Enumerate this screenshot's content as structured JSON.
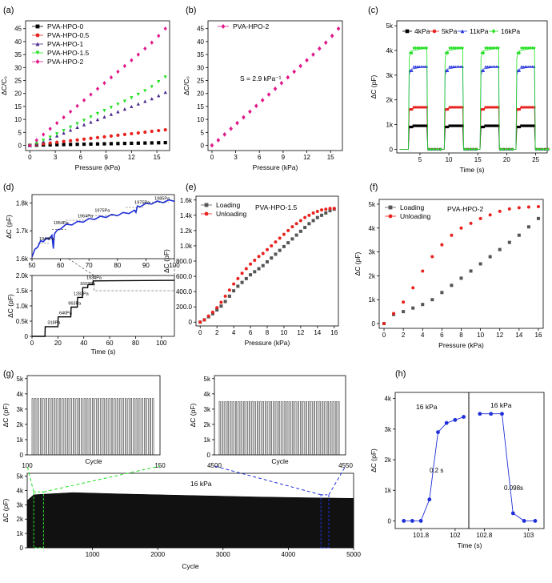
{
  "figure": {
    "panels": [
      {
        "id": "a",
        "label": "(a)"
      },
      {
        "id": "b",
        "label": "(b)"
      },
      {
        "id": "c",
        "label": "(c)"
      },
      {
        "id": "d",
        "label": "(d)"
      },
      {
        "id": "e",
        "label": "(e)"
      },
      {
        "id": "f",
        "label": "(f)"
      },
      {
        "id": "g",
        "label": "(g)"
      },
      {
        "id": "h",
        "label": "(h)"
      }
    ]
  },
  "chart_data": [
    {
      "id": "a",
      "type": "scatter",
      "xlabel": "Pressure (kPa)",
      "ylabel": "ΔC/C₀",
      "xlim": [
        -0.5,
        16.5
      ],
      "ylim": [
        -2,
        48
      ],
      "xticks": [
        0,
        3,
        6,
        9,
        12,
        15
      ],
      "yticks": [
        0,
        5,
        10,
        15,
        20,
        25,
        30,
        35,
        40,
        45
      ],
      "legend_position": "top-left",
      "x": [
        0,
        0.8,
        1.6,
        2.4,
        3.2,
        4,
        4.8,
        5.6,
        6.4,
        7.2,
        8,
        8.8,
        9.6,
        10.4,
        11.2,
        12,
        12.8,
        13.6,
        14.4,
        15.2,
        16
      ],
      "series": [
        {
          "name": "PVA-HPO-0",
          "color": "#000000",
          "marker": "square",
          "values": [
            0,
            0.1,
            0.15,
            0.2,
            0.25,
            0.3,
            0.35,
            0.4,
            0.45,
            0.5,
            0.55,
            0.6,
            0.65,
            0.7,
            0.75,
            0.8,
            0.85,
            0.9,
            0.95,
            1.0,
            1.05
          ]
        },
        {
          "name": "PVA-HPO-0.5",
          "color": "#e8231f",
          "marker": "circle",
          "values": [
            0,
            0.3,
            0.6,
            0.9,
            1.2,
            1.5,
            1.8,
            2.1,
            2.4,
            2.7,
            3.0,
            3.3,
            3.6,
            3.9,
            4.2,
            4.5,
            4.8,
            5.1,
            5.4,
            5.7,
            6.0
          ]
        },
        {
          "name": "PVA-HPO-1",
          "color": "#4b2a8c",
          "marker": "triangle-up",
          "values": [
            0,
            0.7,
            1.6,
            2.6,
            3.7,
            4.8,
            5.9,
            7.0,
            8.0,
            9.0,
            10.0,
            11.0,
            12.0,
            13.0,
            14.0,
            15.0,
            16.0,
            17.0,
            18.0,
            19.2,
            20.5
          ]
        },
        {
          "name": "PVA-HPO-1.5",
          "color": "#22e022",
          "marker": "triangle-down",
          "values": [
            0,
            0.8,
            1.9,
            3.1,
            4.4,
            5.7,
            7.0,
            8.3,
            9.6,
            10.9,
            12.2,
            13.4,
            14.6,
            15.8,
            17.0,
            18.3,
            19.6,
            21.0,
            22.6,
            24.5,
            26.3
          ]
        },
        {
          "name": "PVA-HPO-2",
          "color": "#e0198a",
          "marker": "diamond",
          "values": [
            0,
            2.0,
            4.2,
            6.4,
            8.6,
            10.8,
            13.0,
            15.2,
            17.4,
            19.6,
            21.8,
            24.0,
            26.2,
            28.4,
            30.6,
            32.8,
            35.0,
            37.3,
            39.6,
            42.2,
            45.0
          ]
        }
      ]
    },
    {
      "id": "b",
      "type": "scatter",
      "xlabel": "Pressure (kPa)",
      "ylabel": "ΔC/C₀",
      "xlim": [
        -0.5,
        16.5
      ],
      "ylim": [
        -2,
        48
      ],
      "xticks": [
        0,
        3,
        6,
        9,
        12,
        15
      ],
      "yticks": [
        0,
        5,
        10,
        15,
        20,
        25,
        30,
        35,
        40,
        45
      ],
      "legend_position": "top-left",
      "annotation": "S = 2.9 kPa⁻¹",
      "x": [
        0,
        0.8,
        1.6,
        2.4,
        3.2,
        4,
        4.8,
        5.6,
        6.4,
        7.2,
        8,
        8.8,
        9.6,
        10.4,
        11.2,
        12,
        12.8,
        13.6,
        14.4,
        15.2,
        16
      ],
      "series": [
        {
          "name": "PVA-HPO-2",
          "color": "#e0198a",
          "marker": "diamond",
          "values": [
            0,
            2.0,
            4.2,
            6.4,
            8.6,
            10.8,
            13.0,
            15.2,
            17.4,
            19.6,
            21.8,
            24.0,
            26.2,
            28.4,
            30.6,
            32.8,
            35.0,
            37.3,
            39.6,
            42.2,
            45.0
          ]
        }
      ]
    },
    {
      "id": "c",
      "type": "line",
      "xlabel": "Time (s)",
      "ylabel": "ΔC (pF)",
      "xlim": [
        1,
        27
      ],
      "ylim": [
        -150,
        5200
      ],
      "xticks": [
        5,
        10,
        15,
        20,
        25
      ],
      "yticks": [
        0,
        1000,
        2000,
        3000,
        4000,
        5000
      ],
      "ytick_labels": [
        "0",
        "1k",
        "2k",
        "3k",
        "4k",
        "5k"
      ],
      "legend_position": "top",
      "pulses": [
        [
          3,
          6.2
        ],
        [
          9.2,
          12.4
        ],
        [
          15.4,
          18.6
        ],
        [
          21.6,
          24.8
        ]
      ],
      "series": [
        {
          "name": "4kPa",
          "color": "#000000",
          "marker": "square",
          "level": 950
        },
        {
          "name": "5kPa",
          "color": "#e8231f",
          "marker": "circle",
          "level": 1700
        },
        {
          "name": "11kPa",
          "color": "#1f2fd9",
          "marker": "triangle-up",
          "level": 3350
        },
        {
          "name": "16kPa",
          "color": "#22e022",
          "marker": "diamond",
          "level": 4100
        }
      ]
    },
    {
      "id": "d-top",
      "type": "line",
      "xlabel": "",
      "ylabel": "ΔC (pF)",
      "xlim": [
        50,
        100
      ],
      "ylim": [
        1.6,
        1.83
      ],
      "xticks": [
        50,
        60,
        70,
        80,
        90,
        100
      ],
      "yticks": [
        1.6,
        1.7,
        1.8
      ],
      "ytick_labels": [
        "1.6k",
        "1.7k",
        "1.8k"
      ],
      "color": "#1f2fd9",
      "annotations": [
        "1944Pa",
        "1954Pa",
        "1964Pa",
        "1975Pa",
        "1975Pa",
        "1985Pa"
      ]
    },
    {
      "id": "d-bottom",
      "type": "line",
      "xlabel": "Time (s)",
      "ylabel": "ΔC (pF)",
      "xlim": [
        0,
        110
      ],
      "ylim": [
        0,
        2000
      ],
      "xticks": [
        0,
        20,
        40,
        60,
        80,
        100
      ],
      "yticks": [
        0,
        500,
        1000,
        1500,
        2000
      ],
      "ytick_labels": [
        "0",
        "0.5k",
        "1.0k",
        "1.5k",
        "2.0k"
      ],
      "color": "#000000",
      "x": [
        0,
        10,
        10.2,
        20,
        20.2,
        30,
        30.2,
        35,
        35.2,
        39,
        39.2,
        43,
        43.2,
        47,
        47.2,
        110
      ],
      "values": [
        0,
        0,
        318,
        318,
        640,
        640,
        960,
        960,
        1280,
        1280,
        1600,
        1600,
        1700,
        1700,
        1820,
        1840
      ],
      "annotations": [
        "318Pa",
        "640Pa",
        "963Pa",
        "1283Pa",
        "1603Pa",
        "1934Pa"
      ]
    },
    {
      "id": "e",
      "type": "scatter",
      "title": "PVA-HPO-1.5",
      "xlabel": "Pressure (kPa)",
      "ylabel": "ΔC (pF)",
      "xlim": [
        -0.5,
        16.5
      ],
      "ylim": [
        -50,
        1650
      ],
      "xticks": [
        0,
        2,
        4,
        6,
        8,
        10,
        12,
        14,
        16
      ],
      "yticks": [
        0,
        200,
        400,
        600,
        800,
        1000,
        1200,
        1400,
        1600
      ],
      "ytick_labels": [
        "0",
        "200.0",
        "400.0",
        "600.0",
        "800.0",
        "1.0k",
        "1.2k",
        "1.4k",
        "1.6k"
      ],
      "legend_position": "top-left",
      "series": [
        {
          "name": "Loading",
          "color": "#555555",
          "marker": "square",
          "x": [
            0,
            0.5,
            1,
            1.5,
            2,
            2.5,
            3,
            3.5,
            4,
            4.5,
            5,
            5.5,
            6,
            6.5,
            7,
            7.5,
            8,
            8.5,
            9,
            9.5,
            10,
            10.5,
            11,
            11.5,
            12,
            12.5,
            13,
            13.5,
            14,
            14.5,
            15,
            15.5,
            16
          ],
          "values": [
            0,
            30,
            70,
            110,
            160,
            210,
            270,
            340,
            410,
            470,
            520,
            570,
            620,
            660,
            700,
            740,
            790,
            840,
            890,
            940,
            990,
            1040,
            1090,
            1140,
            1190,
            1240,
            1290,
            1330,
            1370,
            1400,
            1430,
            1460,
            1480
          ]
        },
        {
          "name": "Unloading",
          "color": "#e8231f",
          "marker": "circle",
          "x": [
            0,
            0.5,
            1,
            1.5,
            2,
            2.5,
            3,
            3.5,
            4,
            4.5,
            5,
            5.5,
            6,
            6.5,
            7,
            7.5,
            8,
            8.5,
            9,
            9.5,
            10,
            10.5,
            11,
            11.5,
            12,
            12.5,
            13,
            13.5,
            14,
            14.5,
            15,
            15.5,
            16
          ],
          "values": [
            0,
            30,
            80,
            130,
            190,
            260,
            340,
            420,
            500,
            570,
            640,
            700,
            760,
            810,
            860,
            900,
            950,
            1000,
            1050,
            1100,
            1150,
            1200,
            1250,
            1290,
            1330,
            1370,
            1400,
            1430,
            1450,
            1470,
            1480,
            1490,
            1490
          ]
        }
      ]
    },
    {
      "id": "f",
      "type": "scatter",
      "title": "PVA-HPO-2",
      "xlabel": "Pressure (kPa)",
      "ylabel": "ΔC (pF)",
      "xlim": [
        -0.5,
        16.5
      ],
      "ylim": [
        -200,
        5200
      ],
      "xticks": [
        0,
        2,
        4,
        6,
        8,
        10,
        12,
        14,
        16
      ],
      "yticks": [
        0,
        1000,
        2000,
        3000,
        4000,
        5000
      ],
      "ytick_labels": [
        "0",
        "1k",
        "2k",
        "3k",
        "4k",
        "5k"
      ],
      "legend_position": "top-left",
      "series": [
        {
          "name": "Loading",
          "color": "#555555",
          "marker": "square",
          "x": [
            0,
            1,
            2,
            3,
            4,
            5,
            6,
            7,
            8,
            9,
            10,
            11,
            12,
            13,
            14,
            15,
            16
          ],
          "values": [
            0,
            380,
            500,
            650,
            800,
            1000,
            1300,
            1600,
            1900,
            2200,
            2500,
            2800,
            3100,
            3400,
            3700,
            4050,
            4400
          ]
        },
        {
          "name": "Unloading",
          "color": "#e8231f",
          "marker": "circle",
          "x": [
            0,
            1,
            2,
            3,
            4,
            5,
            6,
            7,
            8,
            9,
            10,
            11,
            12,
            13,
            14,
            15,
            16
          ],
          "values": [
            0,
            420,
            900,
            1500,
            2200,
            2800,
            3300,
            3700,
            4000,
            4200,
            4400,
            4550,
            4700,
            4800,
            4850,
            4880,
            4900
          ]
        }
      ]
    },
    {
      "id": "g-inset-1",
      "type": "line",
      "xlabel": "Cycle",
      "ylabel": "ΔC (pF)",
      "xlim": [
        100,
        150
      ],
      "ylim": [
        0,
        5200
      ],
      "xtick_labels": [
        "100",
        "150"
      ],
      "yticks": [
        0,
        1000,
        2000,
        3000,
        4000,
        5000
      ],
      "ytick_labels": [
        "0",
        "1k",
        "2k",
        "3k",
        "4k",
        "5k"
      ],
      "cycles": 45,
      "level": 3700
    },
    {
      "id": "g-inset-2",
      "type": "line",
      "xlabel": "Cycle",
      "ylabel": "ΔC (pF)",
      "xlim": [
        4500,
        4550
      ],
      "ylim": [
        0,
        5200
      ],
      "xtick_labels": [
        "4500",
        "4550"
      ],
      "yticks": [
        0,
        1000,
        2000,
        3000,
        4000,
        5000
      ],
      "ytick_labels": [
        "0",
        "1k",
        "2k",
        "3k",
        "4k",
        "5k"
      ],
      "cycles": 45,
      "level": 3500
    },
    {
      "id": "g-main",
      "type": "line",
      "annotation": "16 kPa",
      "xlabel": "Cycle",
      "ylabel": "ΔC (pF)",
      "xlim": [
        0,
        5000
      ],
      "ylim": [
        0,
        5200
      ],
      "xticks": [
        1000,
        2000,
        3000,
        4000,
        5000
      ],
      "yticks": [
        0,
        1000,
        2000,
        3000,
        4000,
        5000
      ],
      "ytick_labels": [
        "0",
        "1k",
        "2k",
        "3k",
        "4k",
        "5k"
      ],
      "envelope_x": [
        0,
        100,
        700,
        1500,
        2500,
        3500,
        4500,
        5000
      ],
      "envelope_values": [
        3300,
        3700,
        3850,
        3750,
        3650,
        3550,
        3480,
        3450
      ]
    },
    {
      "id": "h-left",
      "type": "line",
      "annotation": "16 kPa",
      "note": "0.2 s",
      "xlabel": "",
      "ylabel": "ΔC (pF)",
      "xlim": [
        101.65,
        102.08
      ],
      "ylim": [
        -250,
        4200
      ],
      "xticks": [
        101.8,
        102.0
      ],
      "yticks": [
        0,
        1000,
        2000,
        3000,
        4000
      ],
      "ytick_labels": [
        "0",
        "1k",
        "2k",
        "3k",
        "4k"
      ],
      "color": "#1f2fd9",
      "x": [
        101.7,
        101.75,
        101.8,
        101.85,
        101.9,
        101.95,
        102.0,
        102.05
      ],
      "values": [
        0,
        0,
        0,
        700,
        2900,
        3200,
        3300,
        3400
      ]
    },
    {
      "id": "h-right",
      "type": "line",
      "annotation": "16 kPa",
      "note": "0.098s",
      "xlabel": "",
      "ylabel": "",
      "xlim": [
        102.73,
        103.07
      ],
      "ylim": [
        -250,
        4200
      ],
      "xticks": [
        102.8,
        103.0
      ],
      "yticks": [],
      "color": "#1f2fd9",
      "x": [
        102.78,
        102.83,
        102.88,
        102.93,
        102.98,
        103.03
      ],
      "values": [
        3500,
        3500,
        3500,
        250,
        0,
        0
      ]
    },
    {
      "id": "h",
      "shared_xlabel": "Time (s)"
    }
  ]
}
